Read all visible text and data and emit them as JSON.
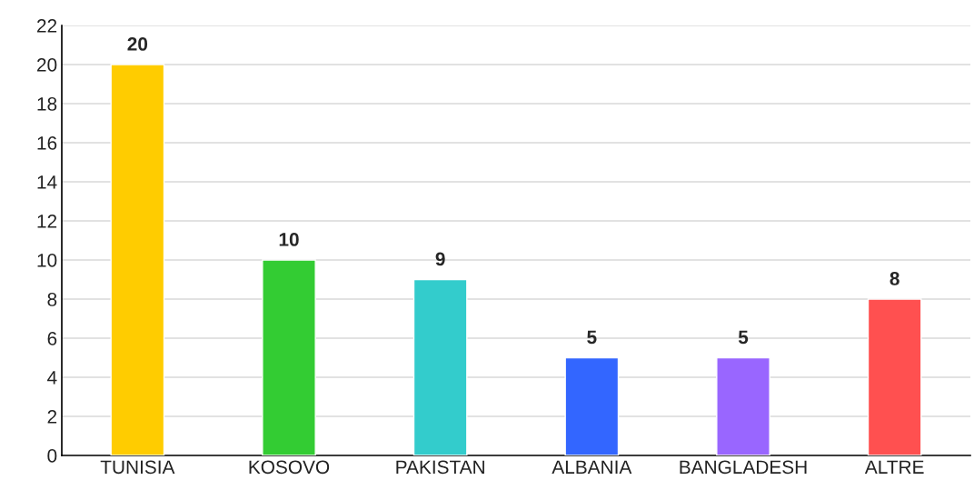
{
  "chart_data": {
    "type": "bar",
    "categories": [
      "TUNISIA",
      "KOSOVO",
      "PAKISTAN",
      "ALBANIA",
      "BANGLADESH",
      "ALTRE"
    ],
    "values": [
      20,
      10,
      9,
      5,
      5,
      8
    ],
    "colors": [
      "#ffcc00",
      "#33cc33",
      "#33cccc",
      "#3366ff",
      "#9966ff",
      "#ff5050"
    ],
    "ylim": [
      0,
      22
    ],
    "yticks": [
      0,
      2,
      4,
      6,
      8,
      10,
      12,
      14,
      16,
      18,
      20,
      22
    ],
    "grid": "y",
    "data_labels": true
  }
}
